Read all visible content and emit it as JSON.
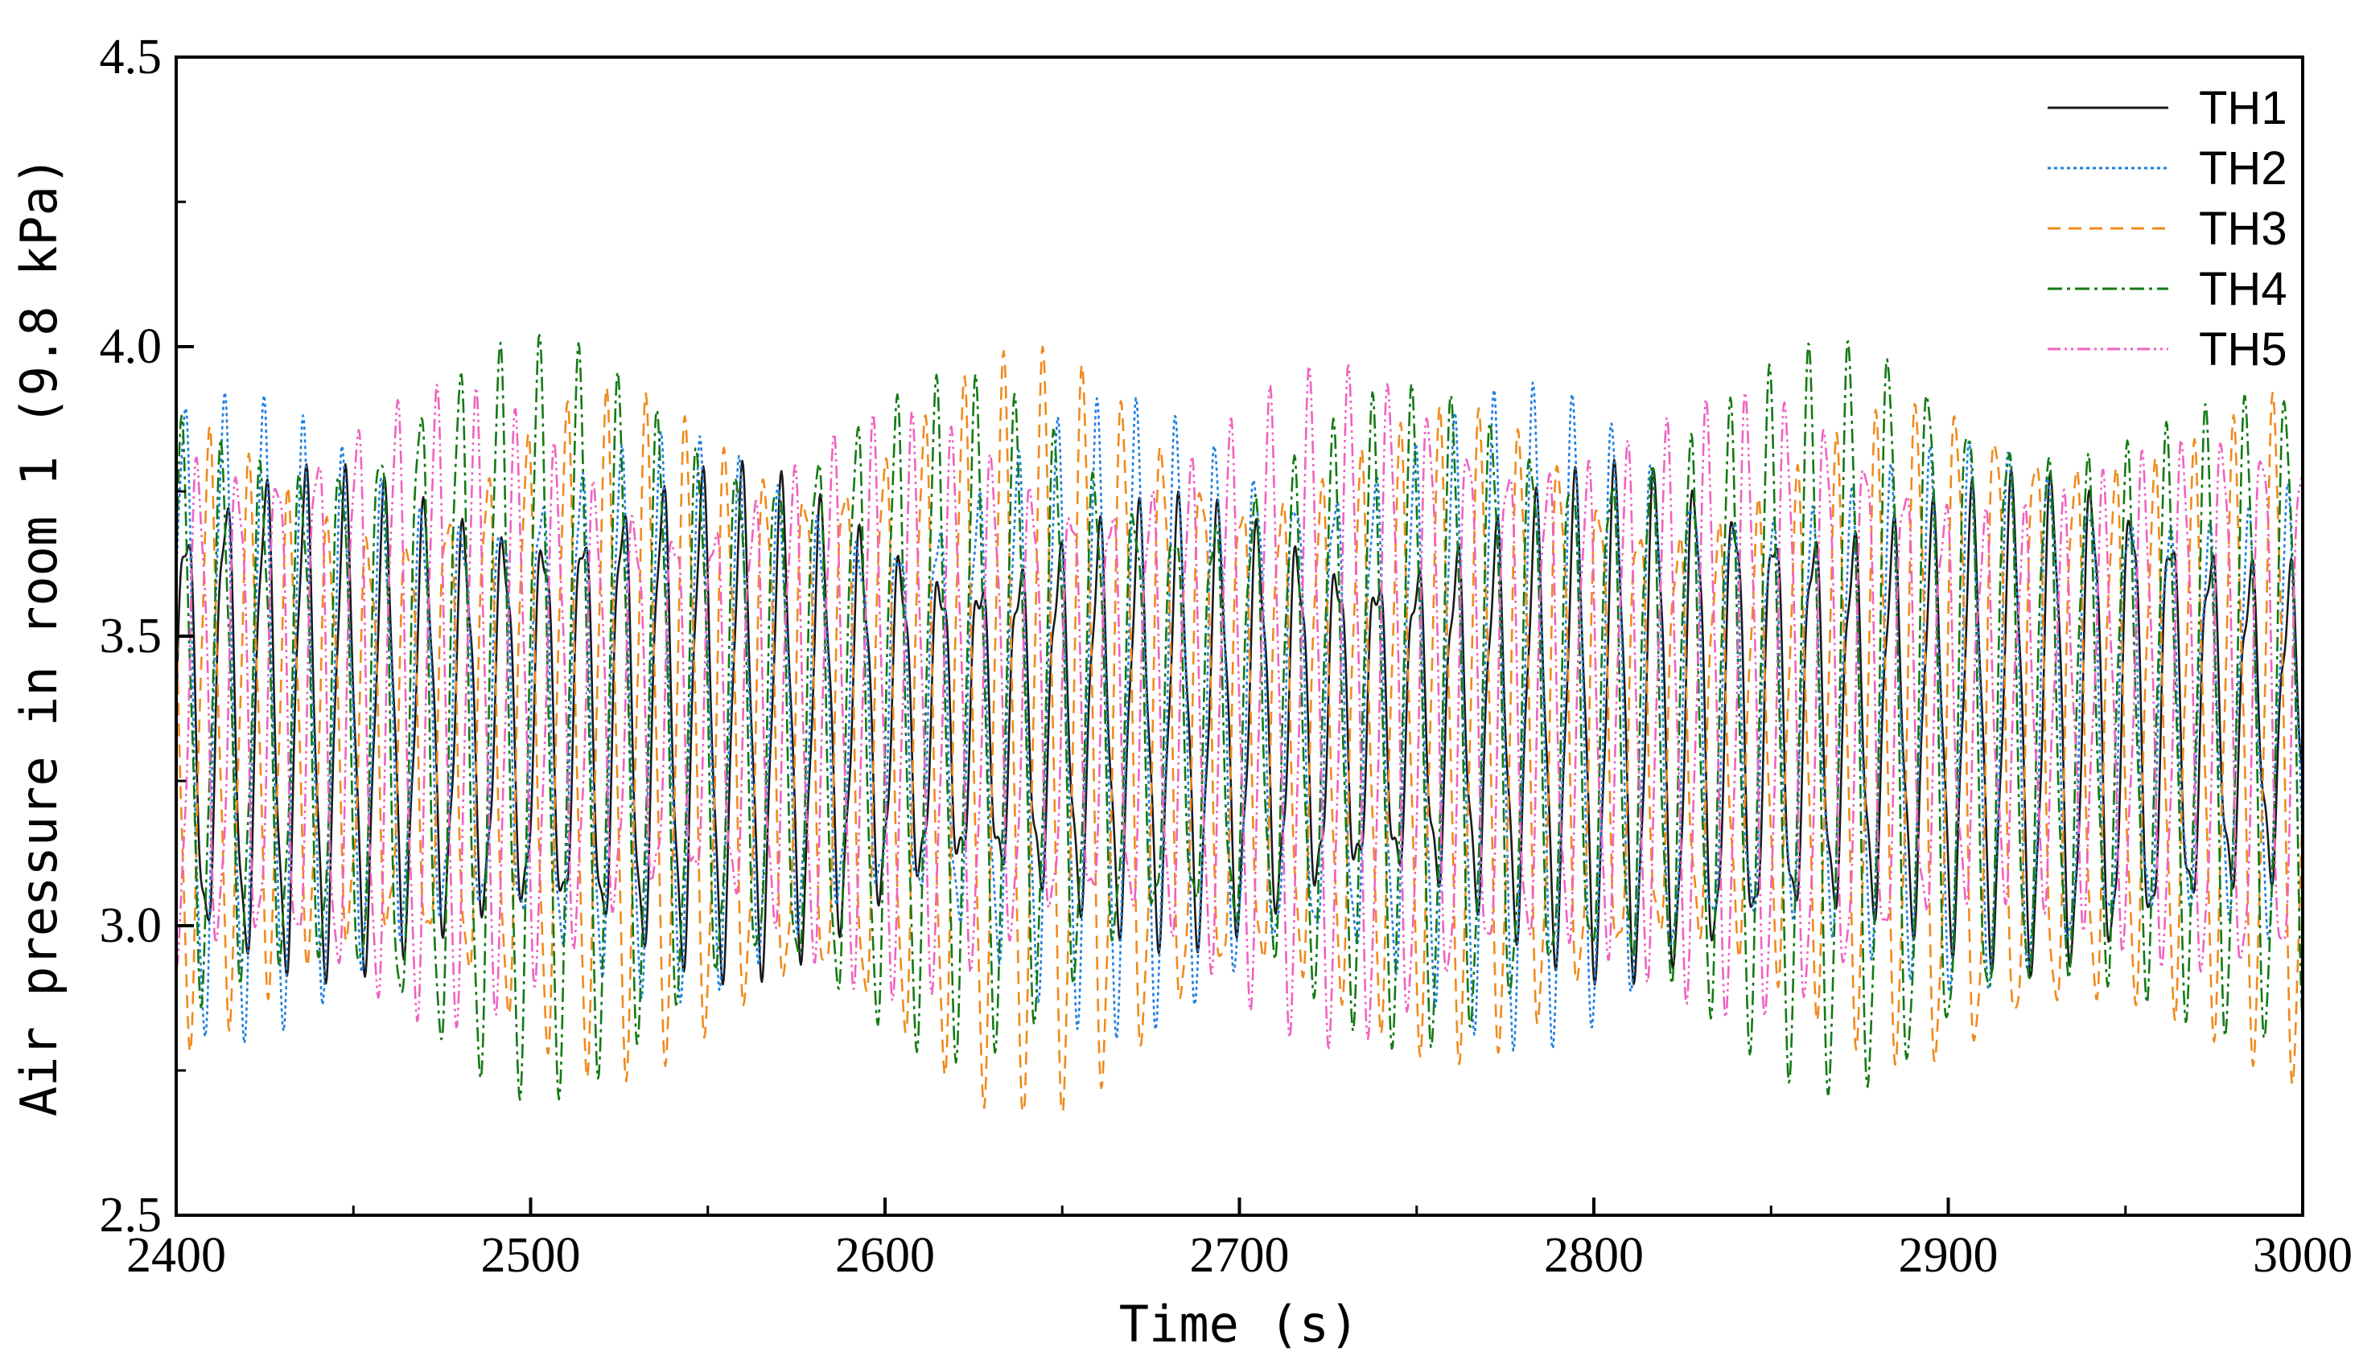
{
  "chart_data": {
    "type": "line",
    "title": "",
    "xlabel": "Time (s)",
    "ylabel": "Air pressure in room 1 (9.8 kPa)",
    "xlim": [
      2400,
      3000
    ],
    "ylim": [
      2.5,
      4.5
    ],
    "xticks": [
      2400,
      2500,
      2600,
      2700,
      2800,
      2900,
      3000
    ],
    "yticks": [
      2.5,
      3.0,
      3.5,
      4.0,
      4.5
    ],
    "xtick_labels": [
      "2400",
      "2500",
      "2600",
      "2700",
      "2800",
      "2900",
      "3000"
    ],
    "ytick_labels": [
      "2.5",
      "3.0",
      "3.5",
      "4.0",
      "4.5"
    ],
    "legend_position": "top-right",
    "grid": false,
    "series": [
      {
        "name": "TH1",
        "color": "#1a1a1a",
        "dash": "solid",
        "mean": 3.35,
        "amplitude": 0.33,
        "period_s": 11.2,
        "phase": 0.0,
        "notes": "oscillation roughly between 3.0 and 3.7"
      },
      {
        "name": "TH2",
        "color": "#1e7fe0",
        "dash": "dotted",
        "mean": 3.36,
        "amplitude": 0.42,
        "period_s": 11.2,
        "phase": 0.35,
        "notes": "oscillation roughly between 2.9 and 3.85"
      },
      {
        "name": "TH3",
        "color": "#f08a1c",
        "dash": "dashed",
        "mean": 3.33,
        "amplitude": 0.48,
        "period_s": 11.2,
        "phase": 2.6,
        "notes": "oscillation roughly between 2.78 and 3.87"
      },
      {
        "name": "TH4",
        "color": "#137a13",
        "dash": "dashdot",
        "mean": 3.36,
        "amplitude": 0.48,
        "period_s": 11.2,
        "phase": 0.7,
        "notes": "oscillation roughly between 2.7 and 4.01"
      },
      {
        "name": "TH5",
        "color": "#f062c0",
        "dash": "dashdotdot",
        "mean": 3.38,
        "amplitude": 0.43,
        "period_s": 11.2,
        "phase": 4.4,
        "notes": "oscillation roughly between 2.76 and 4.0"
      }
    ]
  }
}
